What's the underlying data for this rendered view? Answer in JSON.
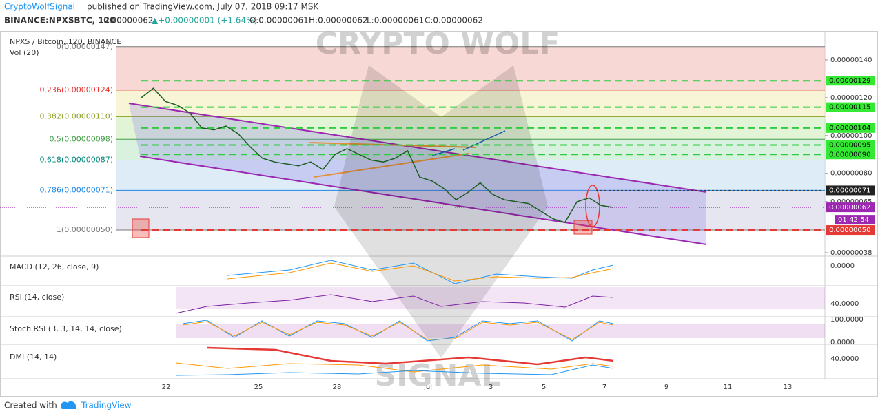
{
  "header": {
    "author": "CryptoWolfSignal",
    "published": "published on TradingView.com, July 07, 2018 09:17 MSK",
    "symbol": "BINANCE:NPXSBTC, 120",
    "last": "0.00000062",
    "change": "▲+0.00000001 (+1.64%)",
    "open": "O:0.00000061",
    "high": "H:0.00000062",
    "low": "L:0.00000061",
    "close": "C:0.00000062"
  },
  "main_pane": {
    "title": "NPXS / Bitcoin, 120, BINANCE",
    "volume": "Vol (20)",
    "watermark_top": "CRYPTO WOLF",
    "watermark_bottom": "SIGNAL",
    "fib_levels": [
      {
        "value": 1.47e-06,
        "label": "0(0.00000147)"
      },
      {
        "value": 1.24e-06,
        "label": "0.236(0.00000124)"
      },
      {
        "value": 1.1e-06,
        "label": "0.382(0.00000110)"
      },
      {
        "value": 9.8e-07,
        "label": "0.5(0.00000098)"
      },
      {
        "value": 8.7e-07,
        "label": "0.618(0.00000087)"
      },
      {
        "value": 7.1e-07,
        "label": "0.786(0.00000071)"
      },
      {
        "value": 5e-07,
        "label": "1(0.00000050)"
      }
    ],
    "price_ticks": [
      {
        "value": 1.4e-06,
        "label": "0.00000140"
      },
      {
        "value": 1.2e-06,
        "label": "0.00000120"
      },
      {
        "value": 1e-06,
        "label": "0.00000100"
      },
      {
        "value": 8e-07,
        "label": "0.00000080"
      },
      {
        "value": 6.5e-07,
        "label": "0.00000065"
      },
      {
        "value": 3.8e-07,
        "label": "0.00000038"
      }
    ],
    "green_levels": [
      {
        "value": 1.29e-06,
        "label": "0.00000129"
      },
      {
        "value": 1.15e-06,
        "label": "0.00000115"
      },
      {
        "value": 1.04e-06,
        "label": "0.00000104"
      },
      {
        "value": 9.5e-07,
        "label": "0.00000095"
      },
      {
        "value": 9e-07,
        "label": "0.00000090"
      }
    ],
    "resistance": {
      "value": 7.1e-07,
      "label": "0.00000071"
    },
    "last_price": {
      "value": 6.2e-07,
      "label": "0.00000062"
    },
    "countdown": "01:42:54",
    "support": {
      "value": 5e-07,
      "label": "0.00000050"
    },
    "closes": [
      1.2e-06,
      1.25e-06,
      1.18e-06,
      1.16e-06,
      1.12e-06,
      1.04e-06,
      1.03e-06,
      1.05e-06,
      1.01e-06,
      9.4e-07,
      8.8e-07,
      8.6e-07,
      8.5e-07,
      8.4e-07,
      8.6e-07,
      8.2e-07,
      9e-07,
      9.3e-07,
      9e-07,
      8.7e-07,
      8.6e-07,
      8.8e-07,
      9.2e-07,
      7.8e-07,
      7.6e-07,
      7.2e-07,
      6.6e-07,
      7e-07,
      7.5e-07,
      6.9e-07,
      6.6e-07,
      6.5e-07,
      6.4e-07,
      6e-07,
      5.6e-07,
      5.4e-07,
      6.5e-07,
      6.7e-07,
      6.3e-07,
      6.2e-07
    ]
  },
  "indicators": [
    {
      "label": "MACD (12, 26, close, 9)",
      "tick": "0.0000"
    },
    {
      "label": "RSI (14, close)",
      "tick": "40.0000"
    },
    {
      "label": "Stoch RSI (3, 3, 14, 14, close)",
      "tick": "100.0000",
      "tick2": "0.0000"
    },
    {
      "label": "DMI (14, 14)",
      "tick": "40.0000"
    }
  ],
  "x_labels": [
    "22",
    "25",
    "28",
    "Jul",
    "3",
    "5",
    "7",
    "9",
    "11",
    "13"
  ],
  "footer": {
    "created": "Created with",
    "brand": "TradingView"
  }
}
